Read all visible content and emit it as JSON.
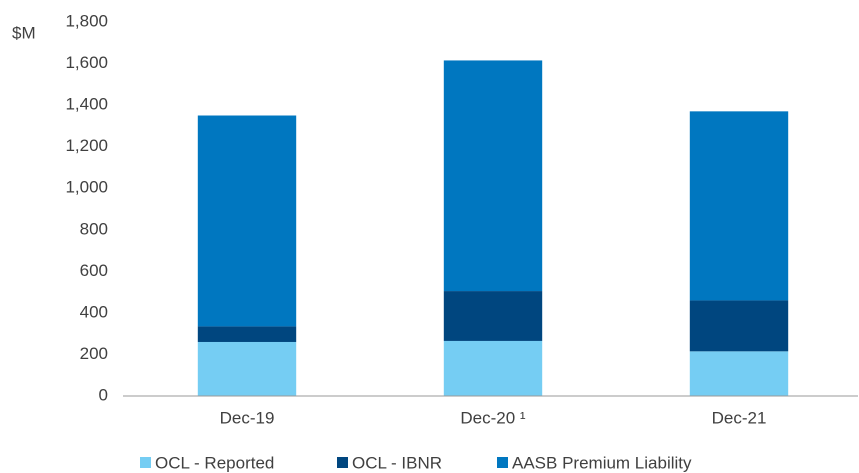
{
  "chart_data": {
    "type": "bar",
    "stacked": true,
    "y_axis_label": "$M",
    "categories": [
      "Dec-19",
      "Dec-20 ¹",
      "Dec-21"
    ],
    "series": [
      {
        "name": "OCL - Reported",
        "color": "#75cdf3",
        "values": [
          260,
          265,
          215
        ]
      },
      {
        "name": "OCL - IBNR",
        "color": "#00467f",
        "values": [
          75,
          240,
          245
        ]
      },
      {
        "name": "AASB Premium Liability",
        "color": "#0077c0",
        "values": [
          1015,
          1110,
          910
        ]
      }
    ],
    "ylim": [
      0,
      1800
    ],
    "yticks": [
      0,
      200,
      400,
      600,
      800,
      {
        "value": 1000,
        "label": "1,000"
      },
      {
        "value": 1200,
        "label": "1,200"
      },
      {
        "value": 1400,
        "label": "1,400"
      },
      {
        "value": 1600,
        "label": "1,600"
      },
      {
        "value": 1800,
        "label": "1,800"
      }
    ],
    "grid": false,
    "legend": "bottom"
  }
}
